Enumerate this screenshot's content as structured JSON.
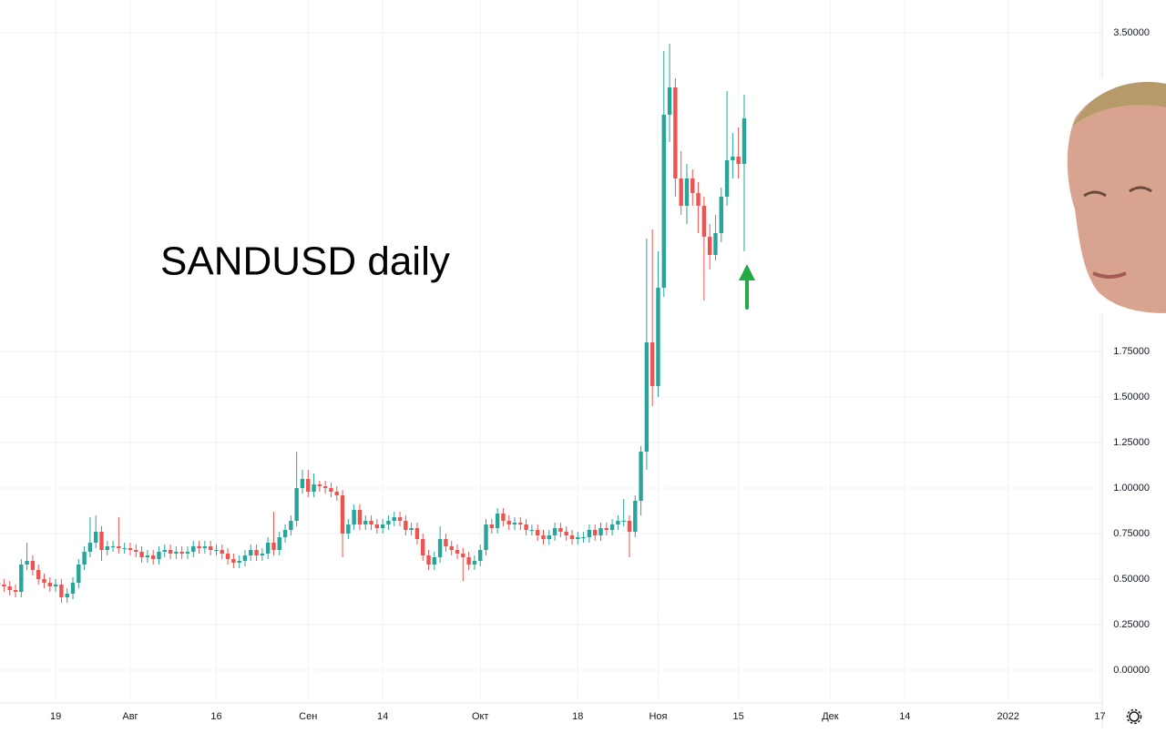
{
  "chart_data": {
    "type": "candlestick",
    "annotation": "SANDUSD daily",
    "x": [
      190,
      191,
      192,
      193,
      194,
      195,
      196,
      197,
      198,
      199,
      200,
      201,
      202,
      203,
      204,
      205,
      206,
      207,
      208,
      209,
      210,
      211,
      212,
      213,
      214,
      215,
      216,
      217,
      218,
      219,
      220,
      221,
      222,
      223,
      224,
      225,
      226,
      227,
      228,
      229,
      230,
      231,
      232,
      233,
      234,
      235,
      236,
      237,
      238,
      239,
      240,
      241,
      242,
      243,
      244,
      245,
      246,
      247,
      248,
      249,
      250,
      251,
      252,
      253,
      254,
      255,
      256,
      257,
      258,
      259,
      260,
      261,
      262,
      263,
      264,
      265,
      266,
      267,
      268,
      269,
      270,
      271,
      272,
      273,
      274,
      275,
      276,
      277,
      278,
      279,
      280,
      281,
      282,
      283,
      284,
      285,
      286,
      287,
      288,
      289,
      290,
      291,
      292,
      293,
      294,
      295,
      296,
      297,
      298,
      299,
      300,
      301,
      302,
      303,
      304,
      305,
      306,
      307,
      308,
      309,
      310,
      311,
      312,
      313,
      314,
      315,
      316,
      317,
      318,
      319,
      320
    ],
    "series": [
      {
        "up_color": "#26a69a",
        "down_color": "#ef5350",
        "open": [
          0.48,
          0.47,
          0.46,
          0.44,
          0.43,
          0.58,
          0.6,
          0.55,
          0.5,
          0.48,
          0.46,
          0.47,
          0.4,
          0.42,
          0.48,
          0.58,
          0.65,
          0.7,
          0.76,
          0.66,
          0.68,
          0.68,
          0.67,
          0.67,
          0.66,
          0.65,
          0.62,
          0.63,
          0.61,
          0.65,
          0.66,
          0.64,
          0.65,
          0.64,
          0.65,
          0.68,
          0.67,
          0.68,
          0.66,
          0.66,
          0.64,
          0.61,
          0.59,
          0.6,
          0.63,
          0.66,
          0.63,
          0.64,
          0.7,
          0.66,
          0.73,
          0.77,
          0.82,
          1.0,
          1.05,
          0.98,
          1.02,
          1.01,
          1.0,
          0.98,
          0.96,
          0.75,
          0.8,
          0.88,
          0.8,
          0.82,
          0.8,
          0.78,
          0.8,
          0.82,
          0.84,
          0.82,
          0.77,
          0.78,
          0.72,
          0.63,
          0.58,
          0.62,
          0.72,
          0.68,
          0.66,
          0.64,
          0.62,
          0.58,
          0.6,
          0.66,
          0.8,
          0.78,
          0.86,
          0.82,
          0.8,
          0.81,
          0.8,
          0.77,
          0.77,
          0.74,
          0.72,
          0.74,
          0.78,
          0.76,
          0.74,
          0.72,
          0.73,
          0.73,
          0.77,
          0.74,
          0.78,
          0.77,
          0.8,
          0.82,
          0.82,
          0.76,
          0.93,
          1.2,
          1.8,
          1.56,
          2.1,
          3.05,
          3.2,
          2.7,
          2.55,
          2.7,
          2.62,
          2.55,
          2.38,
          2.28,
          2.4,
          2.6,
          2.8,
          2.82,
          2.78
        ],
        "high": [
          0.51,
          0.5,
          0.49,
          0.47,
          0.61,
          0.7,
          0.63,
          0.58,
          0.53,
          0.51,
          0.5,
          0.5,
          0.45,
          0.51,
          0.61,
          0.68,
          0.84,
          0.85,
          0.79,
          0.71,
          0.71,
          0.84,
          0.7,
          0.7,
          0.69,
          0.68,
          0.66,
          0.66,
          0.68,
          0.69,
          0.69,
          0.68,
          0.68,
          0.68,
          0.71,
          0.71,
          0.71,
          0.71,
          0.69,
          0.69,
          0.67,
          0.64,
          0.63,
          0.66,
          0.69,
          0.69,
          0.67,
          0.73,
          0.87,
          0.76,
          0.8,
          0.85,
          1.2,
          1.1,
          1.1,
          1.08,
          1.04,
          1.04,
          1.03,
          1.01,
          0.99,
          0.83,
          0.91,
          0.91,
          0.85,
          0.85,
          0.83,
          0.83,
          0.85,
          0.87,
          0.87,
          0.85,
          0.81,
          0.81,
          0.75,
          0.66,
          0.65,
          0.79,
          0.75,
          0.71,
          0.69,
          0.67,
          0.65,
          0.63,
          0.69,
          0.83,
          0.83,
          0.89,
          0.89,
          0.85,
          0.84,
          0.84,
          0.83,
          0.8,
          0.8,
          0.77,
          0.77,
          0.81,
          0.81,
          0.79,
          0.77,
          0.76,
          0.76,
          0.8,
          0.8,
          0.81,
          0.81,
          0.83,
          0.85,
          0.94,
          0.85,
          0.96,
          1.23,
          2.37,
          2.42,
          2.3,
          3.4,
          3.44,
          3.25,
          2.85,
          2.78,
          2.75,
          2.68,
          2.6,
          2.45,
          2.5,
          2.65,
          3.18,
          2.95,
          2.98,
          3.16
        ],
        "low": [
          0.44,
          0.43,
          0.41,
          0.4,
          0.4,
          0.55,
          0.52,
          0.47,
          0.45,
          0.43,
          0.43,
          0.37,
          0.37,
          0.39,
          0.45,
          0.55,
          0.62,
          0.67,
          0.6,
          0.63,
          0.65,
          0.64,
          0.64,
          0.63,
          0.62,
          0.59,
          0.59,
          0.58,
          0.58,
          0.62,
          0.61,
          0.61,
          0.61,
          0.61,
          0.62,
          0.64,
          0.64,
          0.63,
          0.63,
          0.61,
          0.58,
          0.56,
          0.56,
          0.57,
          0.6,
          0.6,
          0.6,
          0.61,
          0.63,
          0.63,
          0.7,
          0.74,
          0.79,
          0.97,
          0.95,
          0.95,
          0.98,
          0.97,
          0.95,
          0.93,
          0.62,
          0.72,
          0.77,
          0.77,
          0.77,
          0.77,
          0.75,
          0.75,
          0.77,
          0.79,
          0.79,
          0.74,
          0.74,
          0.69,
          0.6,
          0.55,
          0.55,
          0.59,
          0.65,
          0.63,
          0.61,
          0.49,
          0.55,
          0.55,
          0.57,
          0.63,
          0.75,
          0.75,
          0.79,
          0.77,
          0.77,
          0.77,
          0.74,
          0.74,
          0.71,
          0.69,
          0.69,
          0.71,
          0.73,
          0.71,
          0.69,
          0.69,
          0.7,
          0.7,
          0.71,
          0.71,
          0.74,
          0.74,
          0.77,
          0.79,
          0.62,
          0.73,
          0.85,
          1.1,
          1.45,
          1.5,
          2.05,
          2.9,
          2.6,
          2.5,
          2.45,
          2.55,
          2.4,
          2.03,
          2.2,
          2.25,
          2.35,
          2.55,
          2.7,
          2.7,
          2.3
        ],
        "close": [
          0.47,
          0.46,
          0.44,
          0.43,
          0.58,
          0.6,
          0.55,
          0.5,
          0.48,
          0.46,
          0.47,
          0.4,
          0.42,
          0.48,
          0.58,
          0.65,
          0.7,
          0.76,
          0.66,
          0.68,
          0.68,
          0.67,
          0.67,
          0.66,
          0.65,
          0.62,
          0.63,
          0.61,
          0.65,
          0.66,
          0.64,
          0.65,
          0.64,
          0.65,
          0.68,
          0.67,
          0.68,
          0.66,
          0.66,
          0.64,
          0.61,
          0.59,
          0.6,
          0.63,
          0.66,
          0.63,
          0.64,
          0.7,
          0.66,
          0.73,
          0.77,
          0.82,
          1.0,
          1.05,
          0.98,
          1.02,
          1.01,
          1.0,
          0.98,
          0.96,
          0.75,
          0.8,
          0.88,
          0.8,
          0.82,
          0.8,
          0.78,
          0.8,
          0.82,
          0.84,
          0.82,
          0.77,
          0.78,
          0.72,
          0.63,
          0.58,
          0.62,
          0.72,
          0.68,
          0.66,
          0.64,
          0.62,
          0.58,
          0.6,
          0.66,
          0.8,
          0.78,
          0.86,
          0.82,
          0.8,
          0.81,
          0.8,
          0.77,
          0.77,
          0.74,
          0.72,
          0.74,
          0.78,
          0.76,
          0.74,
          0.72,
          0.73,
          0.73,
          0.77,
          0.74,
          0.78,
          0.77,
          0.8,
          0.82,
          0.82,
          0.76,
          0.93,
          1.2,
          1.8,
          1.56,
          2.1,
          3.05,
          3.2,
          2.7,
          2.55,
          2.7,
          2.62,
          2.55,
          2.38,
          2.28,
          2.4,
          2.6,
          2.8,
          2.82,
          2.78,
          3.03
        ]
      }
    ],
    "xlim": [
      190.3,
      382.4
    ],
    "xticks": [
      {
        "value": 200,
        "label": "19"
      },
      {
        "value": 213,
        "label": "Авг"
      },
      {
        "value": 228,
        "label": "16"
      },
      {
        "value": 244,
        "label": "Сен"
      },
      {
        "value": 257,
        "label": "14"
      },
      {
        "value": 274,
        "label": "Окт"
      },
      {
        "value": 291,
        "label": "18"
      },
      {
        "value": 305,
        "label": "Ноя"
      },
      {
        "value": 319,
        "label": "15"
      },
      {
        "value": 335,
        "label": "Дек"
      },
      {
        "value": 348,
        "label": "14"
      },
      {
        "value": 366,
        "label": "2022"
      },
      {
        "value": 382,
        "label": "17"
      }
    ],
    "ylim": [
      -0.17,
      3.68
    ],
    "yticks": [
      {
        "value": 0,
        "label": "0.00000"
      },
      {
        "value": 0.25,
        "label": "0.25000"
      },
      {
        "value": 0.5,
        "label": "0.50000"
      },
      {
        "value": 0.75,
        "label": "0.75000"
      },
      {
        "value": 1,
        "label": "1.00000"
      },
      {
        "value": 1.25,
        "label": "1.25000"
      },
      {
        "value": 1.5,
        "label": "1.50000"
      },
      {
        "value": 1.75,
        "label": "1.75000"
      },
      {
        "value": 3.5,
        "label": "3.50000"
      }
    ],
    "grid": true
  }
}
